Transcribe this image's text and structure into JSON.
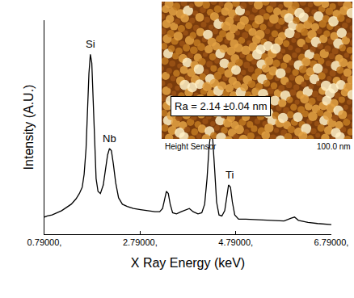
{
  "chart_data": {
    "type": "line",
    "xlabel": "X Ray Energy (keV)",
    "ylabel": "Intensity (A.U.)",
    "x": [
      0.79,
      0.85,
      0.95,
      1.05,
      1.15,
      1.25,
      1.35,
      1.45,
      1.52,
      1.58,
      1.62,
      1.66,
      1.69,
      1.72,
      1.75,
      1.78,
      1.81,
      1.84,
      1.87,
      1.91,
      1.96,
      2.02,
      2.07,
      2.11,
      2.15,
      2.19,
      2.23,
      2.28,
      2.34,
      2.42,
      2.52,
      2.65,
      2.8,
      2.95,
      3.1,
      3.2,
      3.26,
      3.3,
      3.34,
      3.38,
      3.42,
      3.47,
      3.55,
      3.65,
      3.75,
      3.82,
      3.9,
      4.0,
      4.08,
      4.14,
      4.19,
      4.23,
      4.27,
      4.31,
      4.35,
      4.39,
      4.44,
      4.5,
      4.56,
      4.6,
      4.64,
      4.68,
      4.72,
      4.77,
      4.85,
      5.0,
      5.2,
      5.4,
      5.6,
      5.8,
      5.95,
      6.02,
      6.1,
      6.3,
      6.5,
      6.79
    ],
    "values": [
      8,
      8.5,
      9,
      10,
      11,
      12.5,
      14,
      16.5,
      19,
      22,
      28,
      40,
      57,
      75,
      84,
      80,
      62,
      40,
      26,
      20,
      19,
      23,
      31,
      37,
      40,
      39,
      33,
      24,
      17,
      14,
      13,
      12,
      11.5,
      11,
      10.5,
      10.5,
      12,
      16,
      20,
      19,
      14,
      10,
      9.5,
      10.5,
      11.5,
      12,
      10.5,
      9.5,
      10,
      14,
      26,
      40,
      48,
      44,
      30,
      15,
      9,
      8.5,
      11,
      18,
      23,
      22,
      15,
      9,
      7,
      7,
      6.8,
      6.5,
      6.3,
      6.2,
      7.5,
      8,
      6.5,
      5.5,
      5,
      4.5
    ],
    "color": "#000000",
    "xlim": [
      0.79,
      6.79
    ],
    "xticks": [
      {
        "value": 0.79,
        "label": "0.79000,"
      },
      {
        "value": 2.79,
        "label": "2.79000,"
      },
      {
        "value": 4.79,
        "label": "4.79000,"
      },
      {
        "value": 6.79,
        "label": "6.79000,"
      }
    ],
    "ylim": [
      0,
      100
    ],
    "tick_labels": "x",
    "grid": false,
    "annotations": [
      {
        "text": "Si",
        "x": 1.75,
        "y": 84
      },
      {
        "text": "Nb",
        "x": 2.15,
        "y": 40
      },
      {
        "text": "Ti",
        "x": 4.66,
        "y": 23
      }
    ],
    "inset": {
      "ra": "Ra = 2.14 ±0.04 nm",
      "label": "Height Sensor",
      "scale": "100.0 nm"
    }
  }
}
